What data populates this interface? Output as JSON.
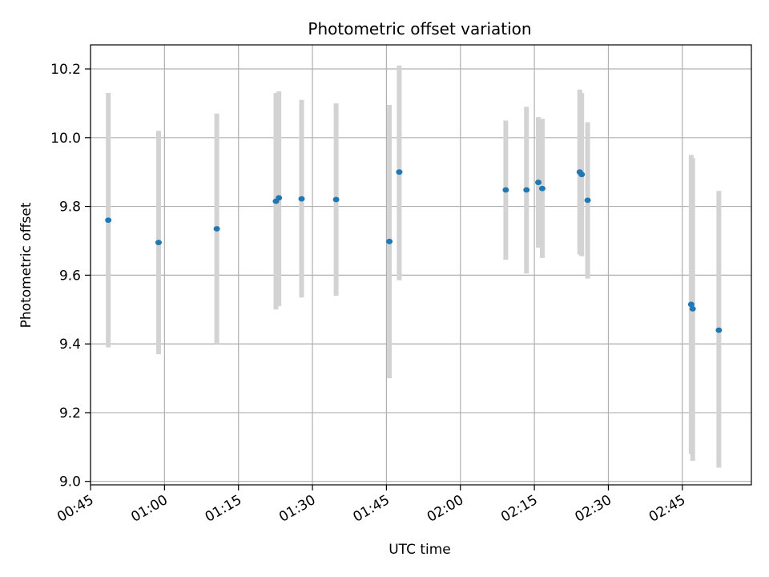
{
  "chart_data": {
    "type": "scatter",
    "title": "Photometric offset variation",
    "xlabel": "UTC time",
    "ylabel": "Photometric offset",
    "x_unit": "HH:MM UTC",
    "xlim": [
      "00:45",
      "02:59"
    ],
    "ylim": [
      8.99,
      10.27
    ],
    "grid": true,
    "xticks": [
      "00:45",
      "01:00",
      "01:15",
      "01:30",
      "01:45",
      "02:00",
      "02:15",
      "02:30",
      "02:45"
    ],
    "yticks": [
      "9.0",
      "9.2",
      "9.4",
      "9.6",
      "9.8",
      "10.0",
      "10.2"
    ],
    "point_color": "#1f77b4",
    "errorbar_color": "#d3d3d3",
    "points": [
      {
        "time": "00:48:36",
        "y": 9.76,
        "lo": 9.39,
        "hi": 10.13
      },
      {
        "time": "00:58:48",
        "y": 9.695,
        "lo": 9.37,
        "hi": 10.02
      },
      {
        "time": "01:10:36",
        "y": 9.735,
        "lo": 9.4,
        "hi": 10.07
      },
      {
        "time": "01:22:36",
        "y": 9.815,
        "lo": 9.5,
        "hi": 10.13
      },
      {
        "time": "01:23:12",
        "y": 9.825,
        "lo": 9.51,
        "hi": 10.135
      },
      {
        "time": "01:27:48",
        "y": 9.822,
        "lo": 9.535,
        "hi": 10.11
      },
      {
        "time": "01:34:48",
        "y": 9.82,
        "lo": 9.54,
        "hi": 10.1
      },
      {
        "time": "01:45:36",
        "y": 9.698,
        "lo": 9.3,
        "hi": 10.095
      },
      {
        "time": "01:47:36",
        "y": 9.9,
        "lo": 9.585,
        "hi": 10.21
      },
      {
        "time": "02:09:12",
        "y": 9.848,
        "lo": 9.645,
        "hi": 10.05
      },
      {
        "time": "02:13:24",
        "y": 9.848,
        "lo": 9.605,
        "hi": 10.09
      },
      {
        "time": "02:15:48",
        "y": 9.87,
        "lo": 9.68,
        "hi": 10.06
      },
      {
        "time": "02:16:36",
        "y": 9.852,
        "lo": 9.65,
        "hi": 10.055
      },
      {
        "time": "02:24:12",
        "y": 9.9,
        "lo": 9.66,
        "hi": 10.14
      },
      {
        "time": "02:24:36",
        "y": 9.893,
        "lo": 9.655,
        "hi": 10.13
      },
      {
        "time": "02:25:48",
        "y": 9.818,
        "lo": 9.59,
        "hi": 10.045
      },
      {
        "time": "02:46:48",
        "y": 9.515,
        "lo": 9.08,
        "hi": 9.95
      },
      {
        "time": "02:47:06",
        "y": 9.502,
        "lo": 9.06,
        "hi": 9.94
      },
      {
        "time": "02:52:24",
        "y": 9.44,
        "lo": 9.04,
        "hi": 9.845
      }
    ]
  }
}
